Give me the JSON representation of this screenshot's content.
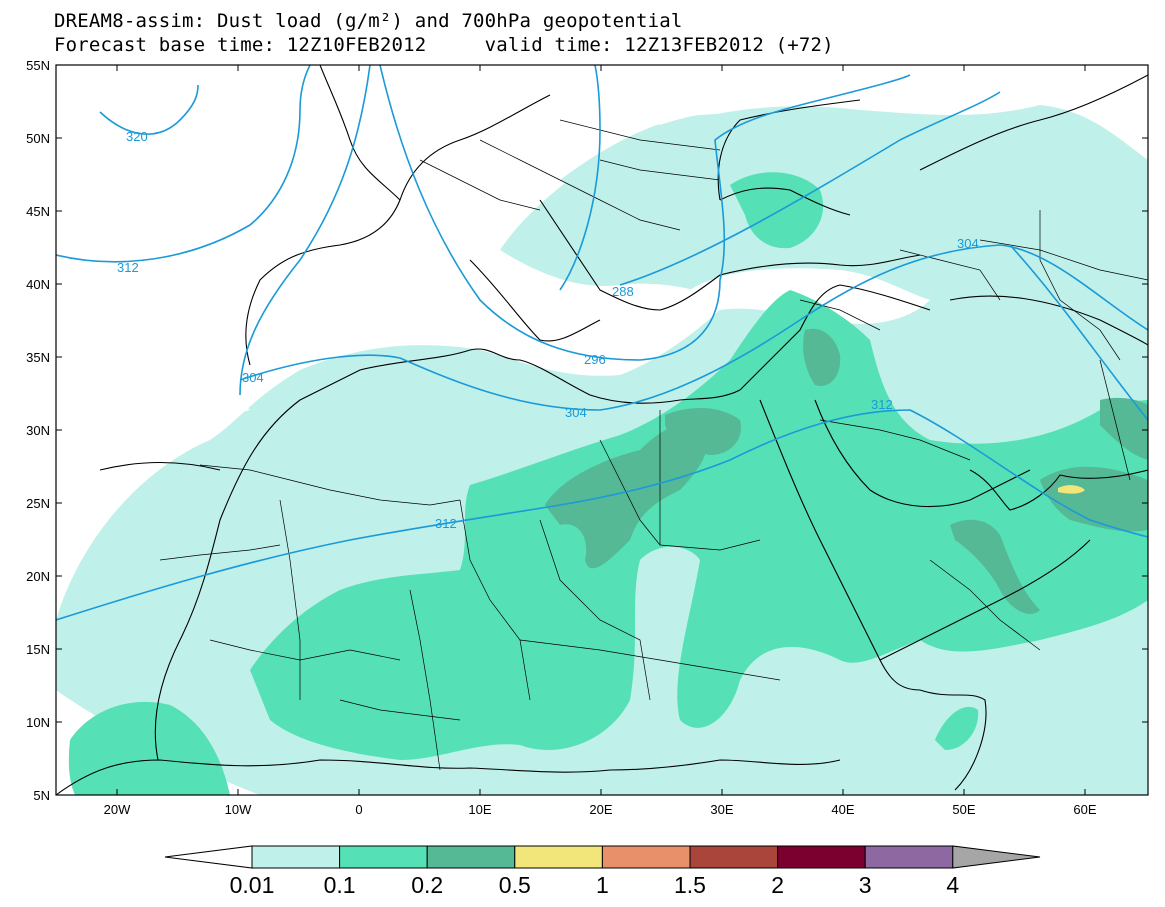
{
  "title": {
    "line1": "DREAM8-assim: Dust load (g/m²) and 700hPa geopotential",
    "line2": "Forecast base time: 12Z10FEB2012     valid time: 12Z13FEB2012 (+72)"
  },
  "axes": {
    "lat_labels": [
      "55N",
      "50N",
      "45N",
      "40N",
      "35N",
      "30N",
      "25N",
      "20N",
      "15N",
      "10N",
      "5N"
    ],
    "lon_labels": [
      "20W",
      "10W",
      "0",
      "10E",
      "20E",
      "30E",
      "40E",
      "50E",
      "60E"
    ]
  },
  "contours": {
    "labels": [
      "320",
      "312",
      "304",
      "296",
      "288",
      "304",
      "312",
      "304",
      "312"
    ]
  },
  "colorbar": {
    "labels": [
      "0.01",
      "0.1",
      "0.2",
      "0.5",
      "1",
      "1.5",
      "2",
      "3",
      "4"
    ],
    "colors": [
      "#ffffff",
      "#bff0ea",
      "#55e0b6",
      "#55b996",
      "#f2e67a",
      "#e8906a",
      "#a9453a",
      "#7b0030",
      "#8e68a0",
      "#a6a6a6"
    ]
  },
  "colors": {
    "dust_low": "#bff0ea",
    "dust_mid": "#55e0b6",
    "dust_high": "#55b996",
    "dust_peak": "#f2e67a",
    "contour": "#1a9ad8"
  }
}
